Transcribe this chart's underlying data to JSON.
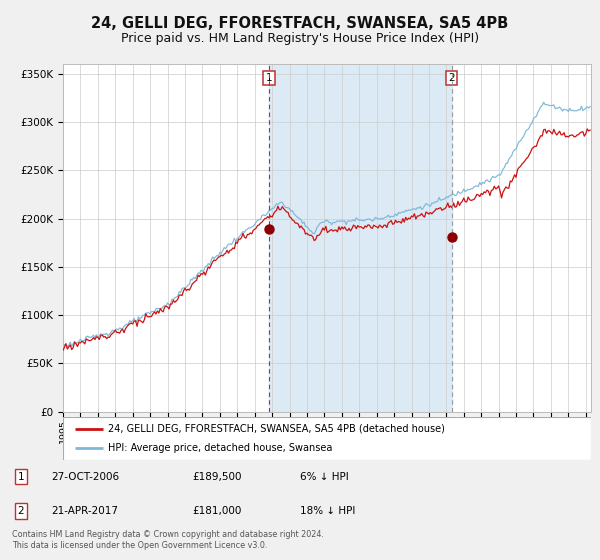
{
  "title": "24, GELLI DEG, FFORESTFACH, SWANSEA, SA5 4PB",
  "subtitle": "Price paid vs. HM Land Registry's House Price Index (HPI)",
  "ylim": [
    0,
    360000
  ],
  "yticks": [
    0,
    50000,
    100000,
    150000,
    200000,
    250000,
    300000,
    350000
  ],
  "ytick_labels": [
    "£0",
    "£50K",
    "£100K",
    "£150K",
    "£200K",
    "£250K",
    "£300K",
    "£350K"
  ],
  "xlim_start": 1995.0,
  "xlim_end": 2025.3,
  "hpi_color": "#7db8d8",
  "price_color": "#cc1111",
  "marker_color": "#8b0000",
  "shade_color": "#dbeaf5",
  "vline1_color": "#cc2222",
  "vline2_color": "#999999",
  "event1_x": 2006.82,
  "event1_y": 189500,
  "event2_x": 2017.31,
  "event2_y": 181000,
  "legend_entries": [
    "24, GELLI DEG, FFORESTFACH, SWANSEA, SA5 4PB (detached house)",
    "HPI: Average price, detached house, Swansea"
  ],
  "table_rows": [
    [
      "1",
      "27-OCT-2006",
      "£189,500",
      "6% ↓ HPI"
    ],
    [
      "2",
      "21-APR-2017",
      "£181,000",
      "18% ↓ HPI"
    ]
  ],
  "footer1": "Contains HM Land Registry data © Crown copyright and database right 2024.",
  "footer2": "This data is licensed under the Open Government Licence v3.0.",
  "background_color": "#f0f0f0",
  "plot_bg_color": "#ffffff",
  "title_fontsize": 10.5,
  "subtitle_fontsize": 9.0
}
